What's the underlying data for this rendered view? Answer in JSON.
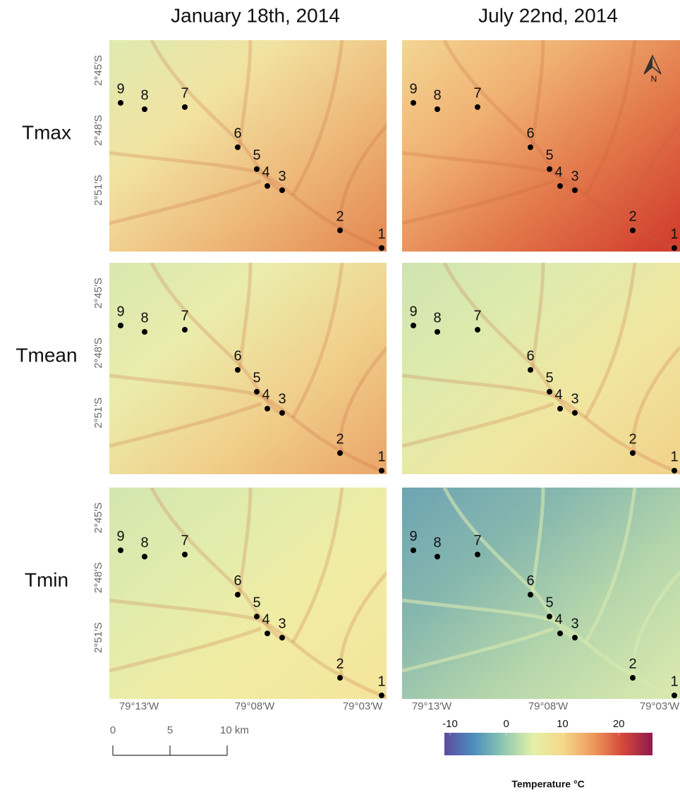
{
  "columns": [
    "January 18th, 2014",
    "July 22nd, 2014"
  ],
  "rows": [
    "Tmax",
    "Tmean",
    "Tmin"
  ],
  "lat_labels": [
    "2°45′S",
    "2°48′S",
    "2°51′S"
  ],
  "lon_labels": [
    "79°13′W",
    "79°08′W",
    "79°03′W"
  ],
  "stations": [
    "1",
    "2",
    "3",
    "4",
    "5",
    "6",
    "7",
    "8",
    "9"
  ],
  "north": "N",
  "scale_bar": {
    "lim": [
      0,
      10
    ],
    "ticks": [
      0,
      5,
      {
        "value": 10,
        "label": "10 km"
      }
    ]
  },
  "legend": {
    "title": "Temperature °C",
    "lim": [
      -11,
      26
    ],
    "ticks": [
      -10,
      0,
      10,
      20
    ]
  }
}
